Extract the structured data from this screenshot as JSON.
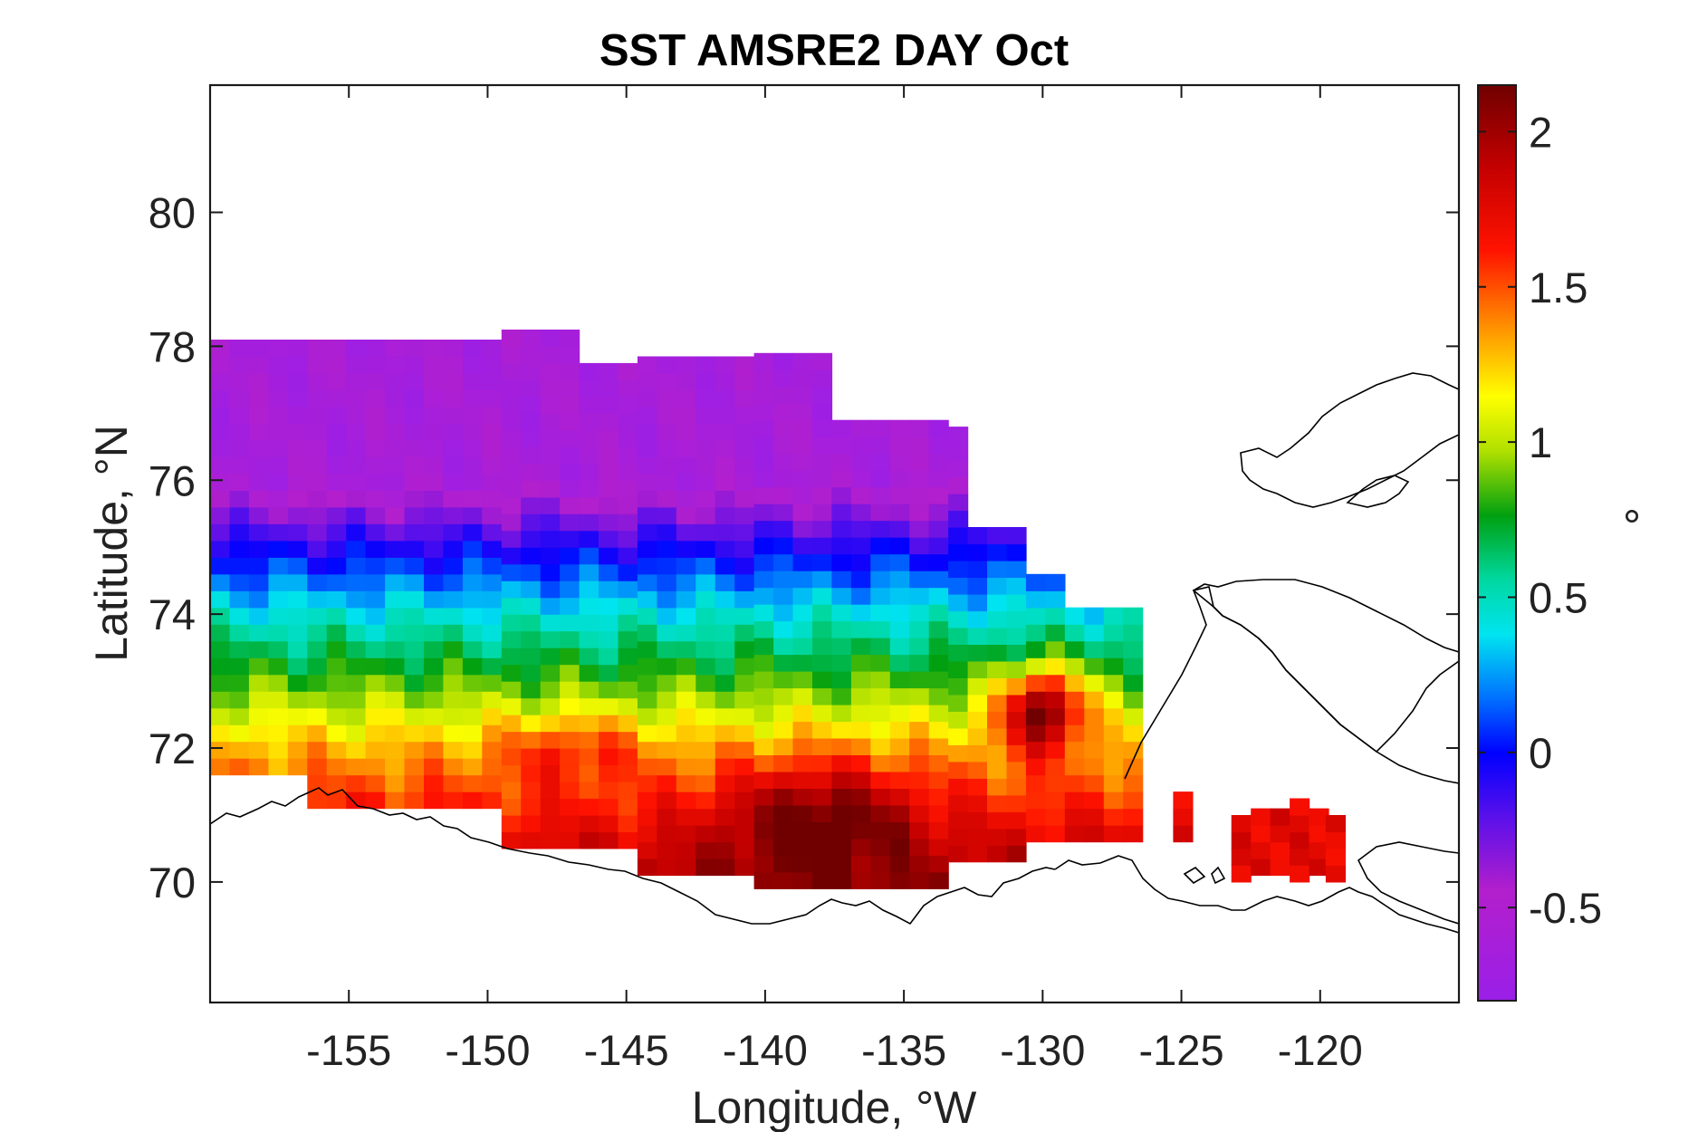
{
  "chart_data": {
    "type": "heatmap",
    "title": "SST AMSRE2 DAY Oct",
    "xlabel": "Longitude, °W",
    "ylabel": "Latitude, °N",
    "xlim": [
      -160,
      -115
    ],
    "ylim": [
      68.2,
      81.9
    ],
    "xticks": [
      -155,
      -150,
      -145,
      -140,
      -135,
      -130,
      -125,
      -120
    ],
    "xtick_labels": [
      "-155",
      "-150",
      "-145",
      "-140",
      "-135",
      "-130",
      "-125",
      "-120"
    ],
    "yticks": [
      70,
      72,
      74,
      76,
      78,
      80
    ],
    "ytick_labels": [
      "70",
      "72",
      "74",
      "76",
      "78",
      "80"
    ],
    "colorbar": {
      "label": "°",
      "range": [
        -0.8,
        2.15
      ],
      "ticks": [
        -0.5,
        0,
        0.5,
        1,
        1.5,
        2
      ],
      "tick_labels": [
        "-0.5",
        "0",
        "0.5",
        "1",
        "1.5",
        "2"
      ],
      "colormap": "spectral-jet (purple-blue-cyan-green-yellow-red-darkred)"
    },
    "field_description": "Sea surface temperature anomaly over the Beaufort Sea: about -0.6 in the north (76-78°N), about 0 near 75°N, 0.5-1 at 73-74°N, rising to 1.5-2 near the Alaskan coast (70.5-72°N) with maxima near -138°W and -130°W.",
    "grid": false
  }
}
